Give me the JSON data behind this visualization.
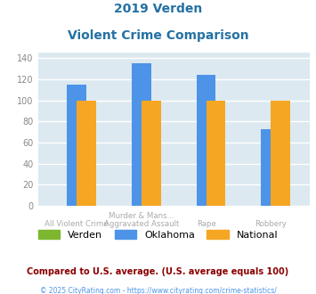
{
  "title_line1": "2019 Verden",
  "title_line2": "Violent Crime Comparison",
  "categories_top": [
    "Murder & Mans...",
    "Rape"
  ],
  "categories_bottom": [
    "All Violent Crime",
    "Aggravated Assault",
    "",
    "Robbery"
  ],
  "categories_all": [
    "All Violent Crime",
    "Murder & Mans...\nAggravated Assault",
    "Rape",
    "Robbery"
  ],
  "series": {
    "Verden": [
      0,
      0,
      0,
      0
    ],
    "Oklahoma": [
      115,
      135,
      124,
      73
    ],
    "National": [
      100,
      100,
      100,
      100
    ]
  },
  "colors": {
    "Verden": "#7db72f",
    "Oklahoma": "#4d94e8",
    "National": "#f5a623"
  },
  "ylim": [
    0,
    145
  ],
  "yticks": [
    0,
    20,
    40,
    60,
    80,
    100,
    120,
    140
  ],
  "background_color": "#dce9f0",
  "grid_color": "#ffffff",
  "bar_width": 0.3,
  "footnote": "Compared to U.S. average. (U.S. average equals 100)",
  "copyright": "© 2025 CityRating.com - https://www.cityrating.com/crime-statistics/",
  "title_color": "#2471a3",
  "footnote_color": "#8b0000",
  "copyright_color": "#4d94e8"
}
